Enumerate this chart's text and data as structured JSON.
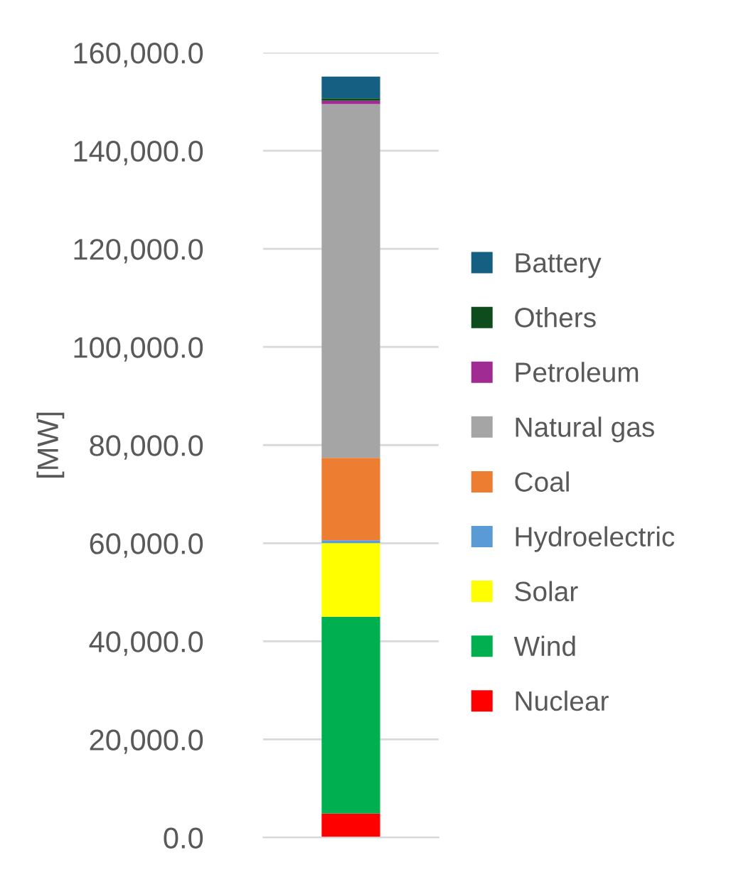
{
  "chart_data": {
    "type": "bar",
    "stacked": true,
    "ylabel": "[MW]",
    "categories": [
      null
    ],
    "series": [
      {
        "name": "Nuclear",
        "color": "#ff0000",
        "values": [
          4900
        ]
      },
      {
        "name": "Wind",
        "color": "#00b050",
        "values": [
          40100
        ]
      },
      {
        "name": "Solar",
        "color": "#ffff00",
        "values": [
          15000
        ]
      },
      {
        "name": "Hydroelectric",
        "color": "#5b9bd5",
        "values": [
          600
        ]
      },
      {
        "name": "Coal",
        "color": "#ed7d31",
        "values": [
          16800
        ]
      },
      {
        "name": "Natural gas",
        "color": "#a5a5a5",
        "values": [
          72100
        ]
      },
      {
        "name": "Petroleum",
        "color": "#a02b93",
        "values": [
          700
        ]
      },
      {
        "name": "Others",
        "color": "#0e4c1e",
        "values": [
          500
        ]
      },
      {
        "name": "Battery",
        "color": "#156082",
        "values": [
          4400
        ]
      }
    ],
    "ylim": [
      0,
      160000
    ],
    "yticks": [
      {
        "value": 0,
        "label": "0.0"
      },
      {
        "value": 20000,
        "label": "20,000.0"
      },
      {
        "value": 40000,
        "label": "40,000.0"
      },
      {
        "value": 60000,
        "label": "60,000.0"
      },
      {
        "value": 80000,
        "label": "80,000.0"
      },
      {
        "value": 100000,
        "label": "100,000.0"
      },
      {
        "value": 120000,
        "label": "120,000.0"
      },
      {
        "value": 140000,
        "label": "140,000.0"
      },
      {
        "value": 160000,
        "label": "160,000.0"
      }
    ],
    "grid": "y",
    "legend": "right"
  }
}
